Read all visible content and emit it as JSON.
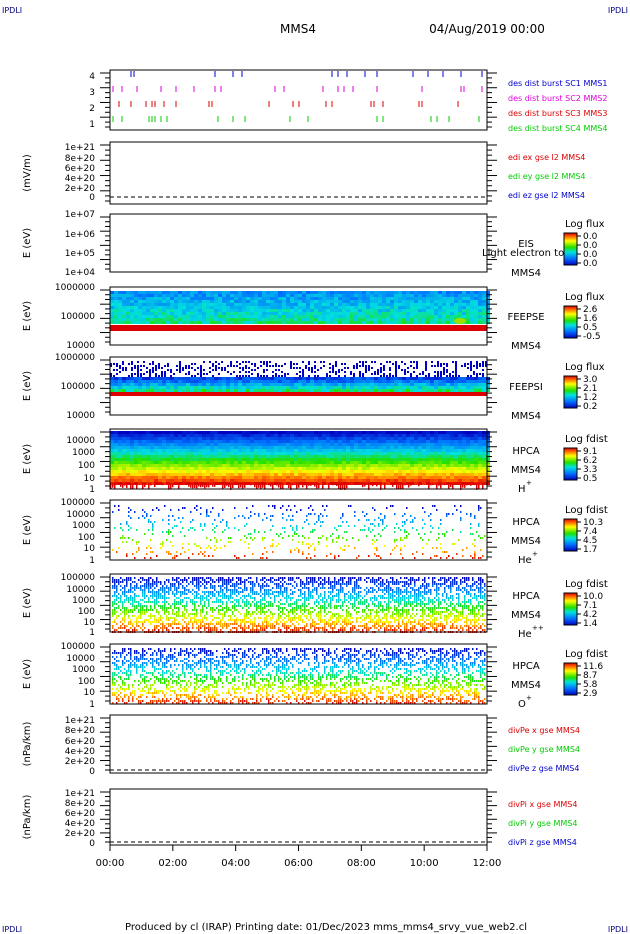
{
  "header": {
    "corner_tl": "IPDLI",
    "corner_tr": "IPDLI",
    "corner_bl": "IPDLI",
    "corner_br": "IPDLI",
    "title": "MMS4",
    "date": "04/Aug/2019 00:00"
  },
  "footer": {
    "text": "Produced by cl (IRAP)   Printing date: 01/Dec/2023   mms_mms4_srvy_vue_web2.cl"
  },
  "colors": {
    "blue": "#0000cc",
    "magenta": "#dd00dd",
    "red": "#dd0000",
    "green": "#00cc00",
    "dark_blue": "#000080"
  },
  "chart_data": [
    {
      "type": "scatter",
      "ylabel": "",
      "yticks": [
        "4",
        "3",
        "2",
        "1"
      ],
      "legend": [
        {
          "text": "des dist burst SC1 MMS1",
          "color": "blue"
        },
        {
          "text": "des dist burst SC2 MMS2",
          "color": "magenta"
        },
        {
          "text": "des dist burst SC3 MMS3",
          "color": "red"
        },
        {
          "text": "des dist burst SC4 MMS4",
          "color": "green"
        }
      ]
    },
    {
      "type": "line",
      "ylabel": "(mV/m)",
      "yticks": [
        "1e+21",
        "8e+20",
        "6e+20",
        "4e+20",
        "2e+20",
        "0"
      ],
      "legend": [
        {
          "text": "edi ex gse l2 MMS4",
          "color": "red"
        },
        {
          "text": "edi ey gse l2 MMS4",
          "color": "green"
        },
        {
          "text": "edi ez gse l2 MMS4",
          "color": "blue"
        }
      ]
    },
    {
      "type": "heatmap",
      "ylabel": "E (eV)",
      "yticks": [
        "1e+07",
        "1e+06",
        "1e+05",
        "1e+04"
      ],
      "instrument": "EIS",
      "overlay": "Light electron to",
      "spacecraft": "MMS4",
      "cbar_title": "Log flux",
      "cbar_ticks": [
        "0.0",
        "0.0",
        "0.0",
        "0.0"
      ]
    },
    {
      "type": "heatmap",
      "ylabel": "E (eV)",
      "yticks": [
        "1000000",
        "100000",
        "10000"
      ],
      "instrument": "FEEPSE",
      "spacecraft": "MMS4",
      "cbar_title": "Log flux",
      "cbar_ticks": [
        "2.6",
        "1.6",
        "0.5",
        "-0.5"
      ]
    },
    {
      "type": "heatmap",
      "ylabel": "E (eV)",
      "yticks": [
        "1000000",
        "100000",
        "10000"
      ],
      "instrument": "FEEPSI",
      "spacecraft": "MMS4",
      "cbar_title": "Log flux",
      "cbar_ticks": [
        "3.0",
        "2.1",
        "1.2",
        "0.2"
      ]
    },
    {
      "type": "heatmap",
      "ylabel": "E (eV)",
      "yticks": [
        "10000",
        "1000",
        "100",
        "10",
        "1"
      ],
      "instrument": "HPCA",
      "spacecraft": "MMS4",
      "species": "H",
      "species_sup": "+",
      "cbar_title": "Log fdist",
      "cbar_ticks": [
        "9.1",
        "6.2",
        "3.3",
        "0.5"
      ]
    },
    {
      "type": "heatmap",
      "ylabel": "E (eV)",
      "yticks": [
        "100000",
        "10000",
        "1000",
        "100",
        "10",
        "1"
      ],
      "instrument": "HPCA",
      "spacecraft": "MMS4",
      "species": "He",
      "species_sup": "+",
      "cbar_title": "Log fdist",
      "cbar_ticks": [
        "10.3",
        "7.4",
        "4.5",
        "1.7"
      ]
    },
    {
      "type": "heatmap",
      "ylabel": "E (eV)",
      "yticks": [
        "100000",
        "10000",
        "1000",
        "100",
        "10",
        "1"
      ],
      "instrument": "HPCA",
      "spacecraft": "MMS4",
      "species": "He",
      "species_sup": "++",
      "cbar_title": "Log fdist",
      "cbar_ticks": [
        "10.0",
        "7.1",
        "4.2",
        "1.4"
      ]
    },
    {
      "type": "heatmap",
      "ylabel": "E (eV)",
      "yticks": [
        "100000",
        "10000",
        "1000",
        "100",
        "10",
        "1"
      ],
      "instrument": "HPCA",
      "spacecraft": "MMS4",
      "species": "O",
      "species_sup": "+",
      "cbar_title": "Log fdist",
      "cbar_ticks": [
        "11.6",
        "8.7",
        "5.8",
        "2.9"
      ]
    },
    {
      "type": "line",
      "ylabel": "(nPa/km)",
      "yticks": [
        "1e+21",
        "8e+20",
        "6e+20",
        "4e+20",
        "2e+20",
        "0"
      ],
      "legend": [
        {
          "text": "divPe x gse MMS4",
          "color": "red"
        },
        {
          "text": "divPe y gse MMS4",
          "color": "green"
        },
        {
          "text": "divPe z gse MMS4",
          "color": "blue"
        }
      ]
    },
    {
      "type": "line",
      "ylabel": "(nPa/km)",
      "yticks": [
        "1e+21",
        "8e+20",
        "6e+20",
        "4e+20",
        "2e+20",
        "0"
      ],
      "legend": [
        {
          "text": "divPi x gse MMS4",
          "color": "red"
        },
        {
          "text": "divPi y gse MMS4",
          "color": "green"
        },
        {
          "text": "divPi z gse MMS4",
          "color": "blue"
        }
      ]
    }
  ],
  "xaxis": {
    "ticks": [
      "00:00",
      "02:00",
      "04:00",
      "06:00",
      "08:00",
      "10:00",
      "12:00"
    ]
  }
}
